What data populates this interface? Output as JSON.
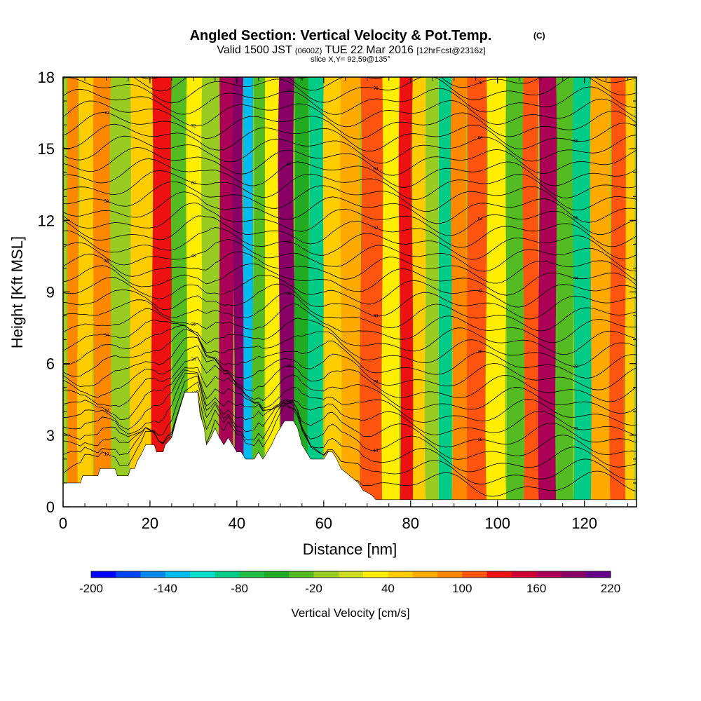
{
  "chart_data": {
    "type": "heatmap",
    "title": "Angled Section: Vertical Velocity & Pot.Temp.",
    "title_mark": "(C)",
    "subtitle_parts": [
      "Valid 1500 JST",
      "(0600Z)",
      "TUE 22 Mar 2016",
      "[12hrFcst@2316z]"
    ],
    "slice_label": "slice X,Y= 92,59@135°",
    "xlabel": "Distance [nm]",
    "ylabel": "Height [Kft MSL]",
    "xlim": [
      0,
      132
    ],
    "ylim": [
      0,
      18
    ],
    "x_ticks": [
      0,
      20,
      40,
      60,
      80,
      100,
      120
    ],
    "y_ticks": [
      0,
      3,
      6,
      9,
      12,
      15,
      18
    ],
    "colorbar": {
      "label": "Vertical Velocity [cm/s]",
      "tick_labels": [
        "-200",
        "-140",
        "-80",
        "-20",
        "40",
        "100",
        "160",
        "220"
      ],
      "colors": [
        "#0000ff",
        "#0044f2",
        "#0088ee",
        "#00bbee",
        "#00ddcc",
        "#00cc88",
        "#22bb44",
        "#22aa22",
        "#55bb22",
        "#99cc22",
        "#ccdd22",
        "#ffee00",
        "#ffcc00",
        "#ffaa00",
        "#ff8800",
        "#ff5511",
        "#ee1111",
        "#cc0033",
        "#aa0055",
        "#880066",
        "#660088"
      ]
    },
    "bands": [
      {
        "x": 2,
        "v": 60
      },
      {
        "x": 5,
        "v": 20
      },
      {
        "x": 9,
        "v": 75
      },
      {
        "x": 13,
        "v": -30
      },
      {
        "x": 18,
        "v": 20
      },
      {
        "x": 23,
        "v": 110
      },
      {
        "x": 27,
        "v": -60
      },
      {
        "x": 30,
        "v": 0
      },
      {
        "x": 34,
        "v": -40
      },
      {
        "x": 38,
        "v": 150
      },
      {
        "x": 40.5,
        "v": 175
      },
      {
        "x": 42.5,
        "v": -160
      },
      {
        "x": 45,
        "v": -60
      },
      {
        "x": 48,
        "v": 10
      },
      {
        "x": 51.5,
        "v": 165
      },
      {
        "x": 55,
        "v": -80
      },
      {
        "x": 58,
        "v": -120
      },
      {
        "x": 62,
        "v": 20
      },
      {
        "x": 66,
        "v": 50
      },
      {
        "x": 71,
        "v": 80
      },
      {
        "x": 76,
        "v": 10
      },
      {
        "x": 79,
        "v": 100
      },
      {
        "x": 82,
        "v": 20
      },
      {
        "x": 85,
        "v": -40
      },
      {
        "x": 88,
        "v": -120
      },
      {
        "x": 91,
        "v": 60
      },
      {
        "x": 95,
        "v": 90
      },
      {
        "x": 100,
        "v": 10
      },
      {
        "x": 104,
        "v": -50
      },
      {
        "x": 108,
        "v": 90
      },
      {
        "x": 111,
        "v": 150
      },
      {
        "x": 116,
        "v": -60
      },
      {
        "x": 119,
        "v": -110
      },
      {
        "x": 124,
        "v": 40
      },
      {
        "x": 128,
        "v": 80
      },
      {
        "x": 131,
        "v": 30
      }
    ],
    "terrain": [
      [
        0,
        1
      ],
      [
        4,
        1
      ],
      [
        4.5,
        1.3
      ],
      [
        8,
        1.3
      ],
      [
        8.5,
        1.6
      ],
      [
        12,
        1.6
      ],
      [
        12.5,
        1.3
      ],
      [
        15,
        1.3
      ],
      [
        15.5,
        1.6
      ],
      [
        16.5,
        1.6
      ],
      [
        17,
        1.9
      ],
      [
        18,
        2.2
      ],
      [
        19,
        2.6
      ],
      [
        21,
        2.6
      ],
      [
        21.5,
        2.3
      ],
      [
        23,
        2.3
      ],
      [
        23.5,
        2.6
      ],
      [
        25,
        2.9
      ],
      [
        26,
        3.6
      ],
      [
        27,
        4.2
      ],
      [
        28,
        4.8
      ],
      [
        31,
        4.8
      ],
      [
        31.5,
        3.9
      ],
      [
        32.5,
        3.3
      ],
      [
        33,
        2.6
      ],
      [
        34,
        2.9
      ],
      [
        35,
        3.3
      ],
      [
        36,
        2.9
      ],
      [
        37,
        2.6
      ],
      [
        38,
        2.9
      ],
      [
        39,
        2.6
      ],
      [
        40,
        2.3
      ],
      [
        41,
        2.3
      ],
      [
        42,
        2.0
      ],
      [
        44,
        2.0
      ],
      [
        45,
        2.3
      ],
      [
        46,
        2.0
      ],
      [
        47,
        2.3
      ],
      [
        48,
        2.6
      ],
      [
        49,
        3.0
      ],
      [
        50,
        3.3
      ],
      [
        51,
        3.6
      ],
      [
        53,
        3.6
      ],
      [
        54,
        3.3
      ],
      [
        55,
        2.6
      ],
      [
        56,
        2.3
      ],
      [
        57,
        2.0
      ],
      [
        60,
        2.0
      ],
      [
        61,
        2.3
      ],
      [
        62,
        2.3
      ],
      [
        63,
        2.0
      ],
      [
        64,
        1.6
      ],
      [
        66,
        1.3
      ],
      [
        68,
        1.0
      ],
      [
        69,
        0.7
      ],
      [
        71,
        0.5
      ],
      [
        72,
        0.3
      ],
      [
        132,
        0.3
      ]
    ],
    "isentrope_labels": [
      "10",
      "12",
      "14",
      "16",
      "18",
      "20",
      "22",
      "24",
      "26",
      "28",
      "30",
      "32",
      "34",
      "36",
      "38",
      "40",
      "42",
      "44",
      "46",
      "48",
      "50",
      "52",
      "54",
      "56",
      "58",
      "60",
      "62",
      "64",
      "66",
      "68",
      "70",
      "72",
      "74",
      "76",
      "78",
      "80"
    ]
  }
}
